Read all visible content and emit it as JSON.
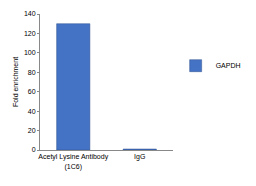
{
  "chart_data": {
    "type": "bar",
    "y_label": "Fold enrichment",
    "categories": [
      "Acetyl Lysine Antibody (1C6)",
      "IgG"
    ],
    "series": [
      {
        "name": "GAPDH",
        "color": "#4472c4",
        "values": [
          130,
          1
        ]
      }
    ],
    "ylim": [
      0,
      140
    ],
    "yticks": [
      0,
      20,
      40,
      60,
      80,
      100,
      120,
      140
    ],
    "grid": false,
    "legend": "right"
  }
}
